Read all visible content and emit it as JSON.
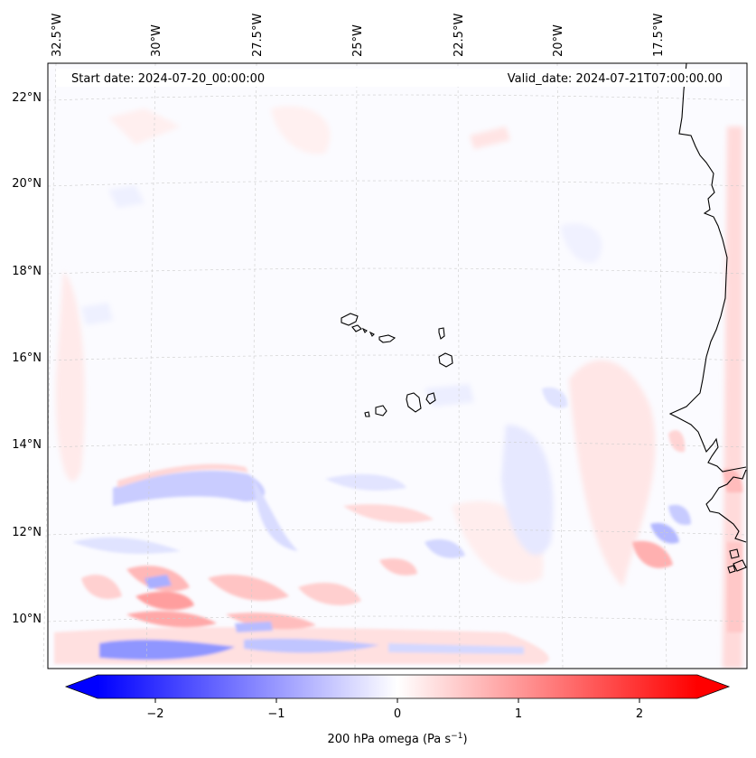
{
  "map": {
    "start_label": "Start date: 2024-07-20_00:00:00",
    "valid_label": "Valid_date: 2024-07-21T07:00:00.00",
    "lon_labels": [
      "32.5°W",
      "30°W",
      "27.5°W",
      "25°W",
      "22.5°W",
      "20°W",
      "17.5°W"
    ],
    "lat_labels": [
      "22°N",
      "20°N",
      "18°N",
      "16°N",
      "14°N",
      "12°N",
      "10°N"
    ]
  },
  "colorbar": {
    "ticks": [
      "−2",
      "−1",
      "0",
      "1",
      "2"
    ],
    "label_main": "200 hPa omega (Pa s",
    "label_exp": "−1",
    "label_close": ")",
    "min_color": "#0000ff",
    "mid_color": "#ffffff",
    "max_color": "#ff0000"
  },
  "colors": {
    "coast": "#000000",
    "grid": "#cccccc",
    "frame": "#000000"
  }
}
